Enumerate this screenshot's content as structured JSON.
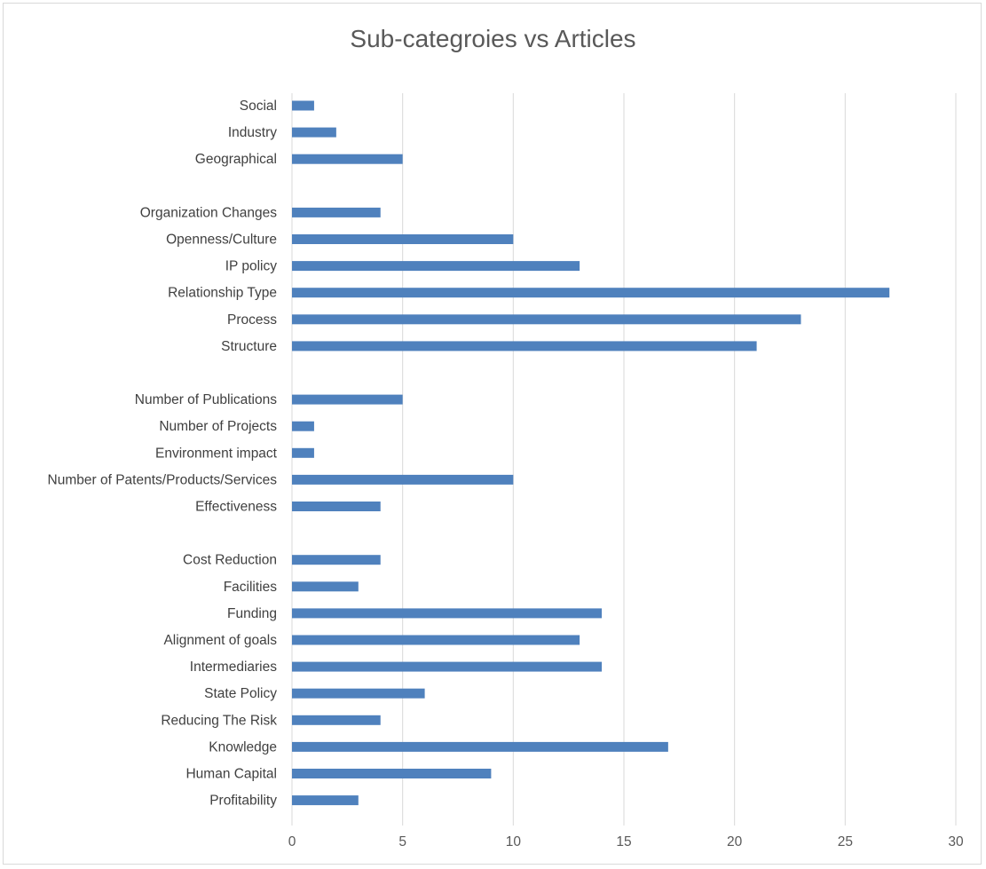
{
  "chart_data": {
    "type": "bar",
    "orientation": "horizontal",
    "title": "Sub-categroies vs Articles",
    "xlabel": "",
    "ylabel": "",
    "xlim": [
      0,
      30
    ],
    "x_ticks": [
      "0",
      "5",
      "10",
      "15",
      "20",
      "25",
      "30"
    ],
    "grid": "vertical",
    "bar_color": "#4f81bd",
    "gridline_color": "#d9d9d9",
    "rows": [
      {
        "label": "Social",
        "value": 1
      },
      {
        "label": "Industry",
        "value": 2
      },
      {
        "label": "Geographical",
        "value": 5
      },
      {
        "label": "",
        "value": null
      },
      {
        "label": "Organization Changes",
        "value": 4
      },
      {
        "label": "Openness/Culture",
        "value": 10
      },
      {
        "label": "IP policy",
        "value": 13
      },
      {
        "label": "Relationship Type",
        "value": 27
      },
      {
        "label": "Process",
        "value": 23
      },
      {
        "label": "Structure",
        "value": 21
      },
      {
        "label": "",
        "value": null
      },
      {
        "label": "Number of Publications",
        "value": 5
      },
      {
        "label": "Number of Projects",
        "value": 1
      },
      {
        "label": "Environment impact",
        "value": 1
      },
      {
        "label": "Number of Patents/Products/Services",
        "value": 10
      },
      {
        "label": "Effectiveness",
        "value": 4
      },
      {
        "label": "",
        "value": null
      },
      {
        "label": "Cost Reduction",
        "value": 4
      },
      {
        "label": "Facilities",
        "value": 3
      },
      {
        "label": "Funding",
        "value": 14
      },
      {
        "label": "Alignment of goals",
        "value": 13
      },
      {
        "label": "Intermediaries",
        "value": 14
      },
      {
        "label": "State Policy",
        "value": 6
      },
      {
        "label": "Reducing The Risk",
        "value": 4
      },
      {
        "label": "Knowledge",
        "value": 17
      },
      {
        "label": "Human Capital",
        "value": 9
      },
      {
        "label": "Profitability",
        "value": 3
      }
    ]
  }
}
